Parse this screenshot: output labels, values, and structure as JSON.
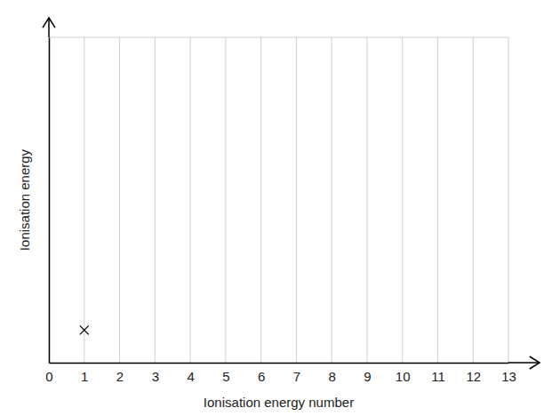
{
  "chart_data": {
    "type": "scatter",
    "x_label": "Ionisation energy number",
    "y_label": "Ionisation energy",
    "x": [
      1
    ],
    "values": [
      1
    ],
    "color": "#000000",
    "marker": "x",
    "xlim": [
      0,
      13
    ],
    "xticks": [
      0,
      1,
      2,
      3,
      4,
      5,
      6,
      7,
      8,
      9,
      10,
      11,
      12,
      13
    ],
    "ylim": [
      0,
      10
    ],
    "grid": true,
    "tick_labels": "x"
  }
}
